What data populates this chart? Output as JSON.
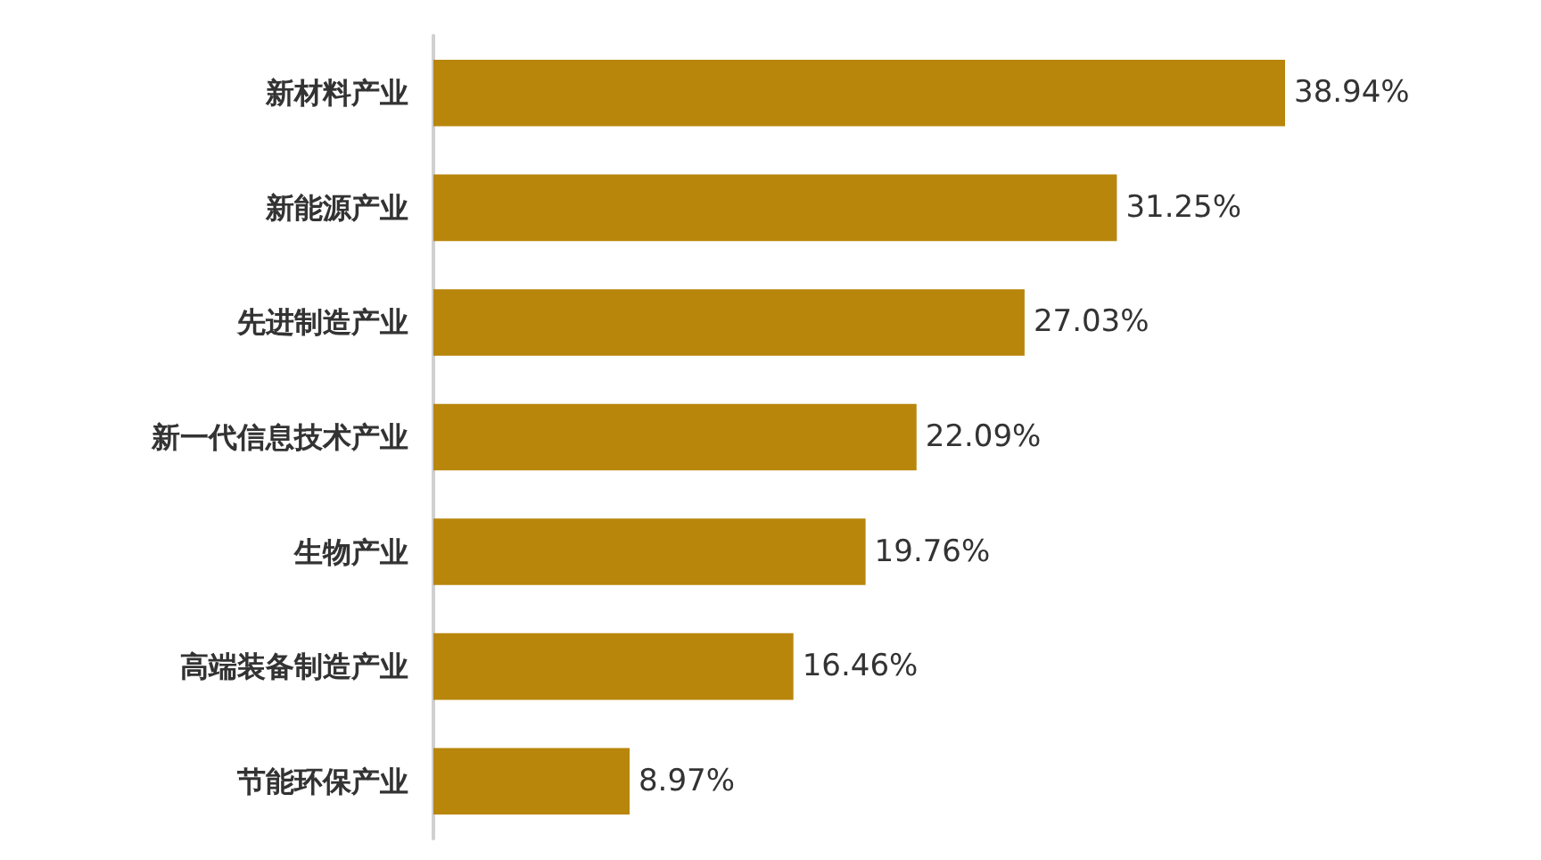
{
  "chart_data": {
    "type": "bar",
    "orientation": "horizontal",
    "categories": [
      "新材料产业",
      "新能源产业",
      "先进制造产业",
      "新一代信息技术产业",
      "生物产业",
      "高端装备制造产业",
      "节能环保产业"
    ],
    "values": [
      38.94,
      31.25,
      27.03,
      22.09,
      19.76,
      16.46,
      8.97
    ],
    "value_labels": [
      "38.94%",
      "31.25%",
      "27.03%",
      "22.09%",
      "19.76%",
      "16.46%",
      "8.97%"
    ],
    "color": "#b8860b"
  }
}
